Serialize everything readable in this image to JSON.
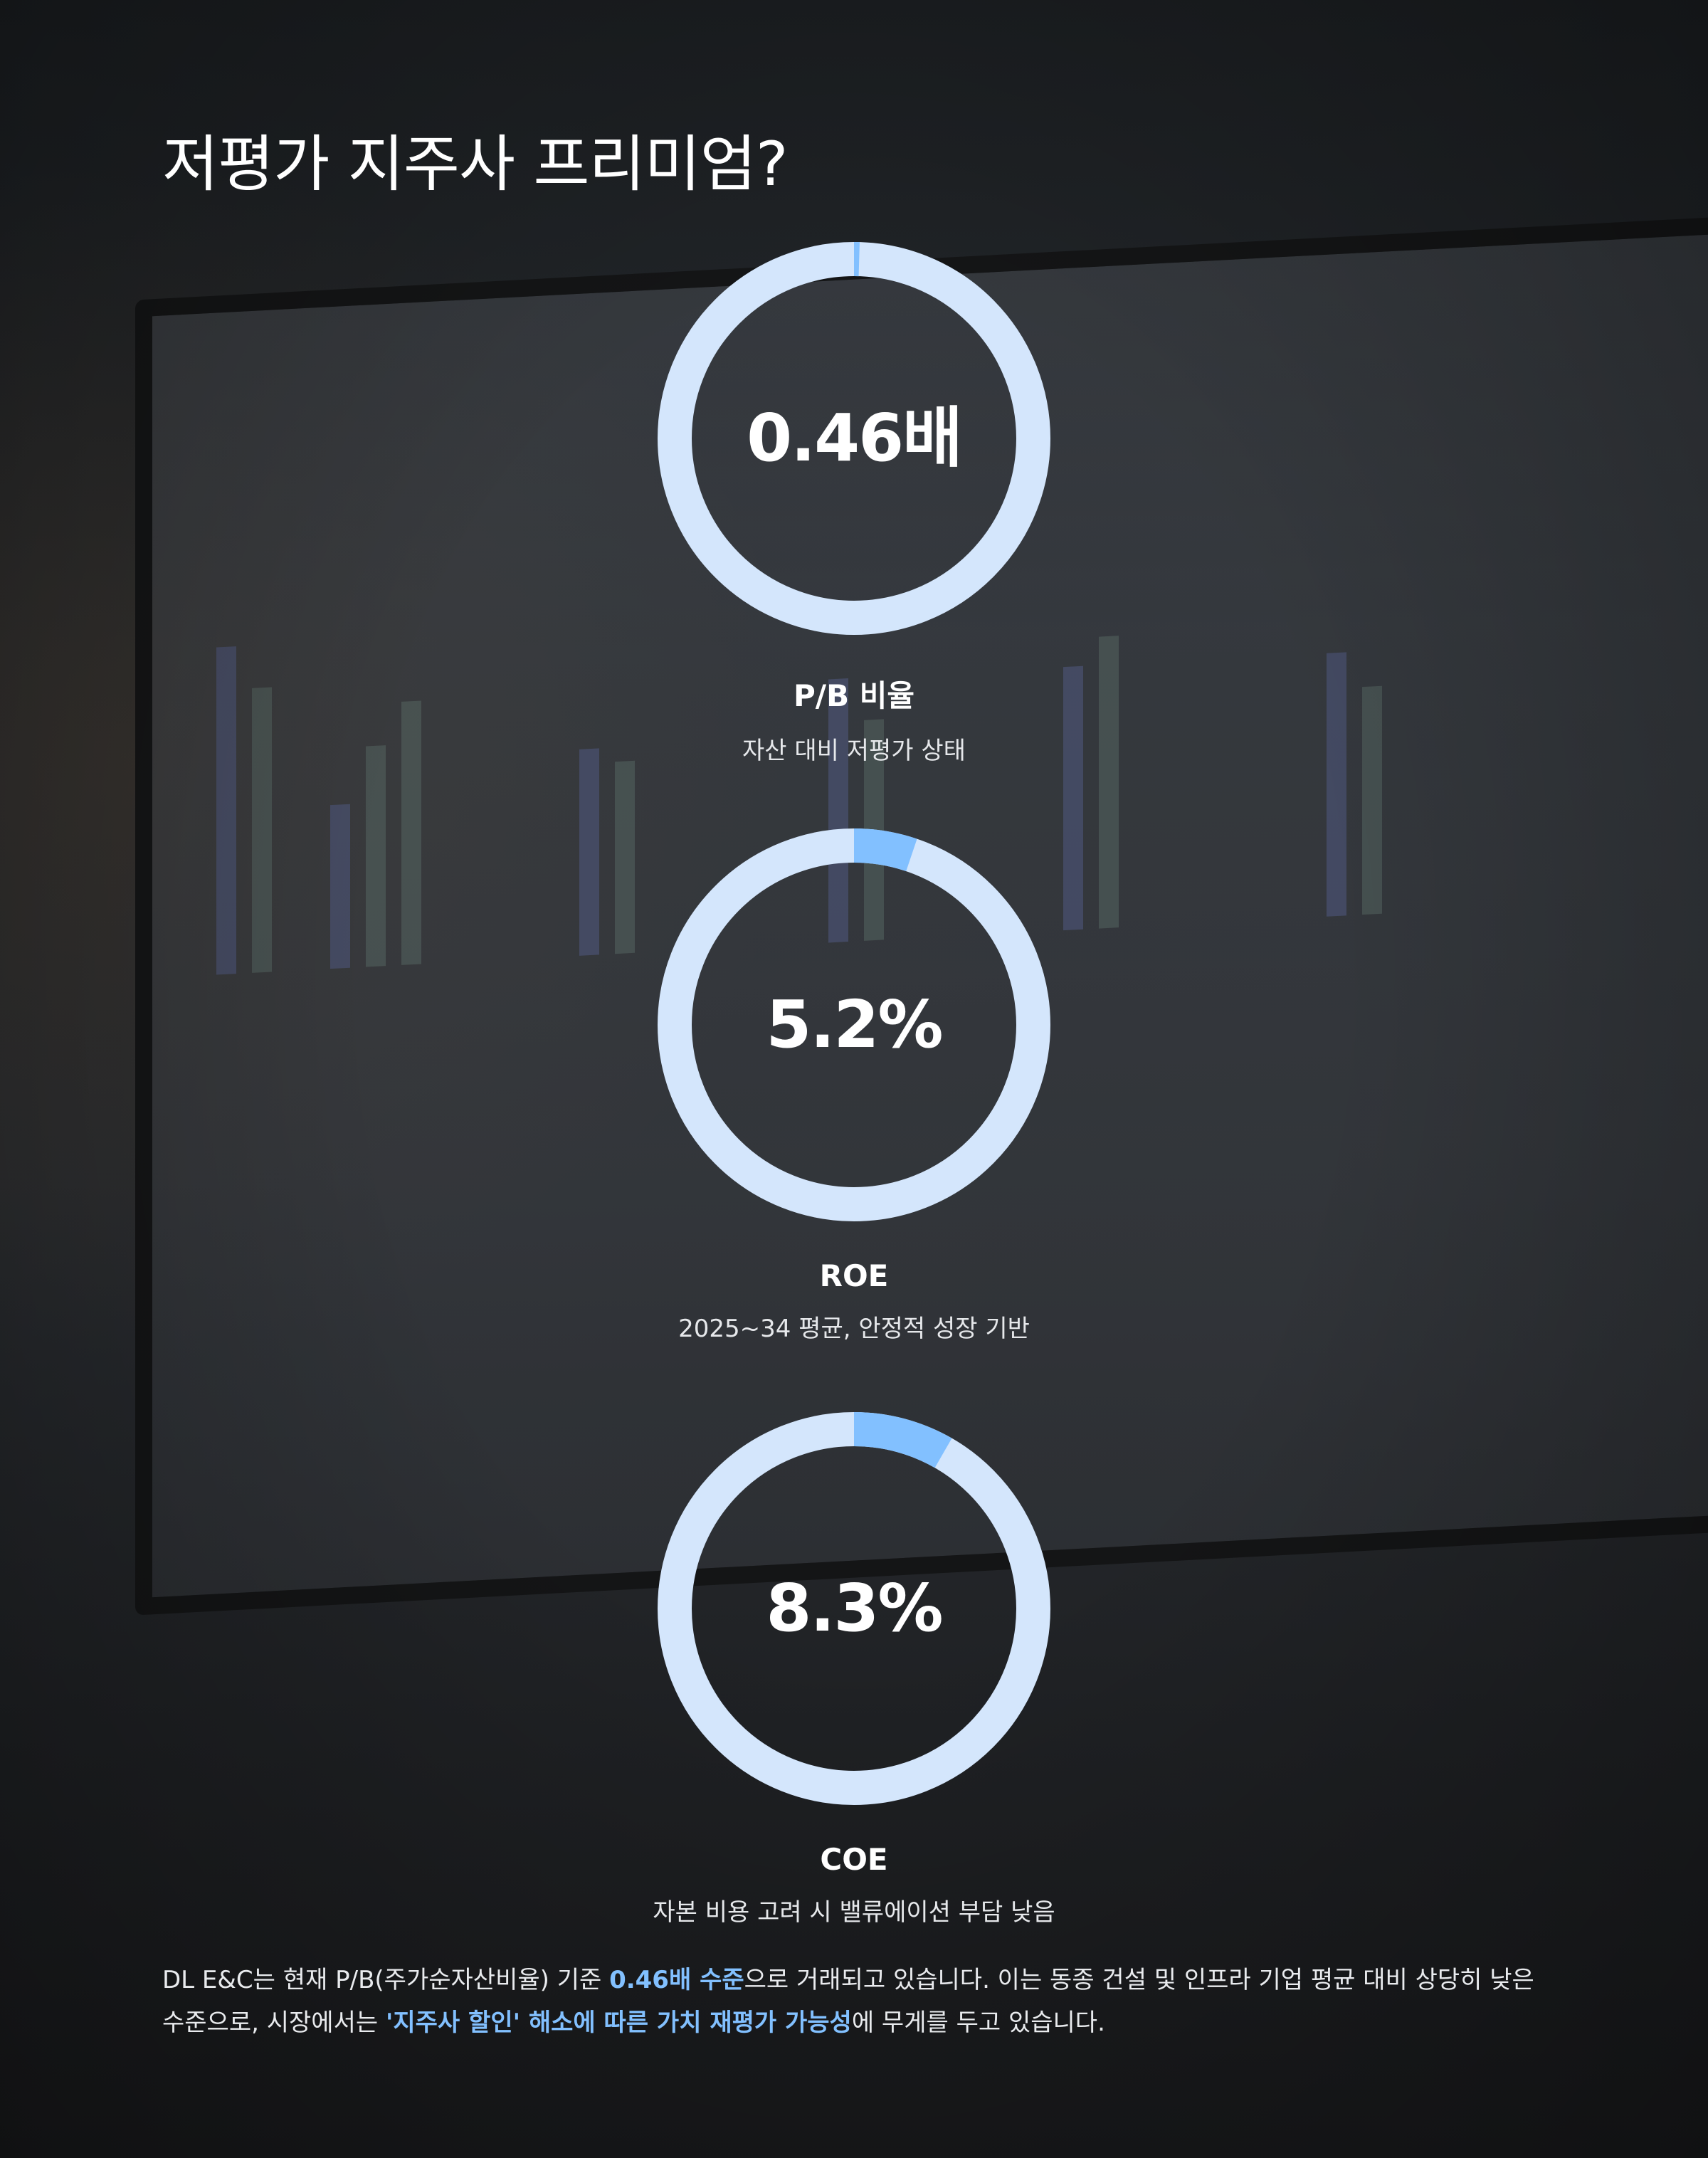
{
  "title": "저평가 지주사 프리미엄?",
  "colors": {
    "ring_track": "#d4e6fc",
    "ring_fill": "#82c0ff",
    "highlight": "#82c0ff"
  },
  "metrics": [
    {
      "value": "0.46배",
      "label": "P/B 비율",
      "sub": "자산 대비 저평가 상태",
      "progress": 0.0046
    },
    {
      "value": "5.2%",
      "label": "ROE",
      "sub": "2025~34 평균, 안정적 성장 기반",
      "progress": 0.052
    },
    {
      "value": "8.3%",
      "label": "COE",
      "sub": "자본 비용 고려 시 밸류에이션 부담 낮음",
      "progress": 0.083
    }
  ],
  "paragraph": {
    "p1": "DL E&C는 현재 P/B(주가순자산비율) 기준 ",
    "h1": "0.46배 수준",
    "p2": "으로 거래되고 있습니다. 이는 동종 건설 및 인프라 기업 평균 대비 상당히 낮은 수준으로, 시장에서는 ",
    "h2": "'지주사 할인' 해소에 따른 가치 재평가 가능성",
    "p3": "에 무게를 두고 있습니다."
  }
}
